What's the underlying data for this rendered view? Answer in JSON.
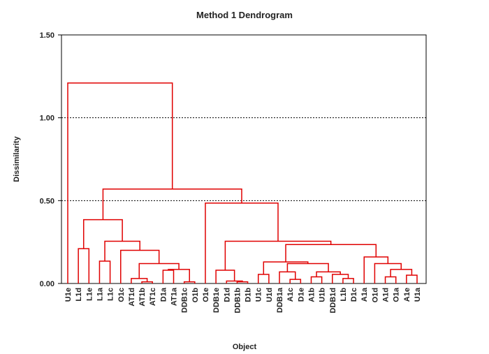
{
  "chart_data": {
    "type": "dendrogram",
    "title": "Method 1 Dendrogram",
    "x_label": "Object",
    "y_label": "Dissimilarity",
    "categories": [
      "U1e",
      "L1d",
      "L1e",
      "L1a",
      "L1c",
      "O1c",
      "AT1d",
      "AT1b",
      "AT1c",
      "D1a",
      "AT1a",
      "DDB1c",
      "O1b",
      "O1e",
      "DDB1e",
      "D1d",
      "DDB1b",
      "D1b",
      "U1c",
      "U1d",
      "DDB1a",
      "A1c",
      "D1e",
      "A1b",
      "U1b",
      "DDB1d",
      "L1b",
      "D1c",
      "A1a",
      "O1d",
      "A1d",
      "O1a",
      "A1e",
      "U1a"
    ],
    "merges": [
      {
        "left": 1,
        "right": 2,
        "height": 0.21
      },
      {
        "left": 3,
        "right": 4,
        "height": 0.135
      },
      {
        "left": 7,
        "right": 8,
        "height": 0.01
      },
      {
        "left": 6,
        "right": 36,
        "height": 0.03
      },
      {
        "left": 9,
        "right": 10,
        "height": 0.08
      },
      {
        "left": 11,
        "right": 12,
        "height": 0.01
      },
      {
        "left": 38,
        "right": 39,
        "height": 0.085
      },
      {
        "left": 37,
        "right": 40,
        "height": 0.12
      },
      {
        "left": 5,
        "right": 41,
        "height": 0.2
      },
      {
        "left": 35,
        "right": 42,
        "height": 0.255
      },
      {
        "left": 34,
        "right": 43,
        "height": 0.385
      },
      {
        "left": 16,
        "right": 17,
        "height": 0.01
      },
      {
        "left": 15,
        "right": 45,
        "height": 0.015
      },
      {
        "left": 14,
        "right": 46,
        "height": 0.08
      },
      {
        "left": 18,
        "right": 19,
        "height": 0.055
      },
      {
        "left": 21,
        "right": 22,
        "height": 0.025
      },
      {
        "left": 20,
        "right": 49,
        "height": 0.07
      },
      {
        "left": 23,
        "right": 24,
        "height": 0.04
      },
      {
        "left": 26,
        "right": 27,
        "height": 0.03
      },
      {
        "left": 25,
        "right": 52,
        "height": 0.055
      },
      {
        "left": 51,
        "right": 53,
        "height": 0.07
      },
      {
        "left": 50,
        "right": 54,
        "height": 0.12
      },
      {
        "left": 48,
        "right": 55,
        "height": 0.13
      },
      {
        "left": 32,
        "right": 33,
        "height": 0.05
      },
      {
        "left": 30,
        "right": 31,
        "height": 0.04
      },
      {
        "left": 58,
        "right": 57,
        "height": 0.085
      },
      {
        "left": 29,
        "right": 59,
        "height": 0.12
      },
      {
        "left": 28,
        "right": 60,
        "height": 0.16
      },
      {
        "left": 56,
        "right": 61,
        "height": 0.235
      },
      {
        "left": 47,
        "right": 62,
        "height": 0.255
      },
      {
        "left": 13,
        "right": 63,
        "height": 0.485
      },
      {
        "left": 44,
        "right": 64,
        "height": 0.57
      },
      {
        "left": 0,
        "right": 65,
        "height": 1.21
      }
    ],
    "color": "#e00000",
    "ylim": [
      0,
      1.5
    ],
    "yticks": [
      {
        "value": 0,
        "label": "0.00"
      },
      {
        "value": 0.5,
        "label": "0.50"
      },
      {
        "value": 1,
        "label": "1.00"
      },
      {
        "value": 1.5,
        "label": "1.50"
      }
    ],
    "grid": true
  }
}
